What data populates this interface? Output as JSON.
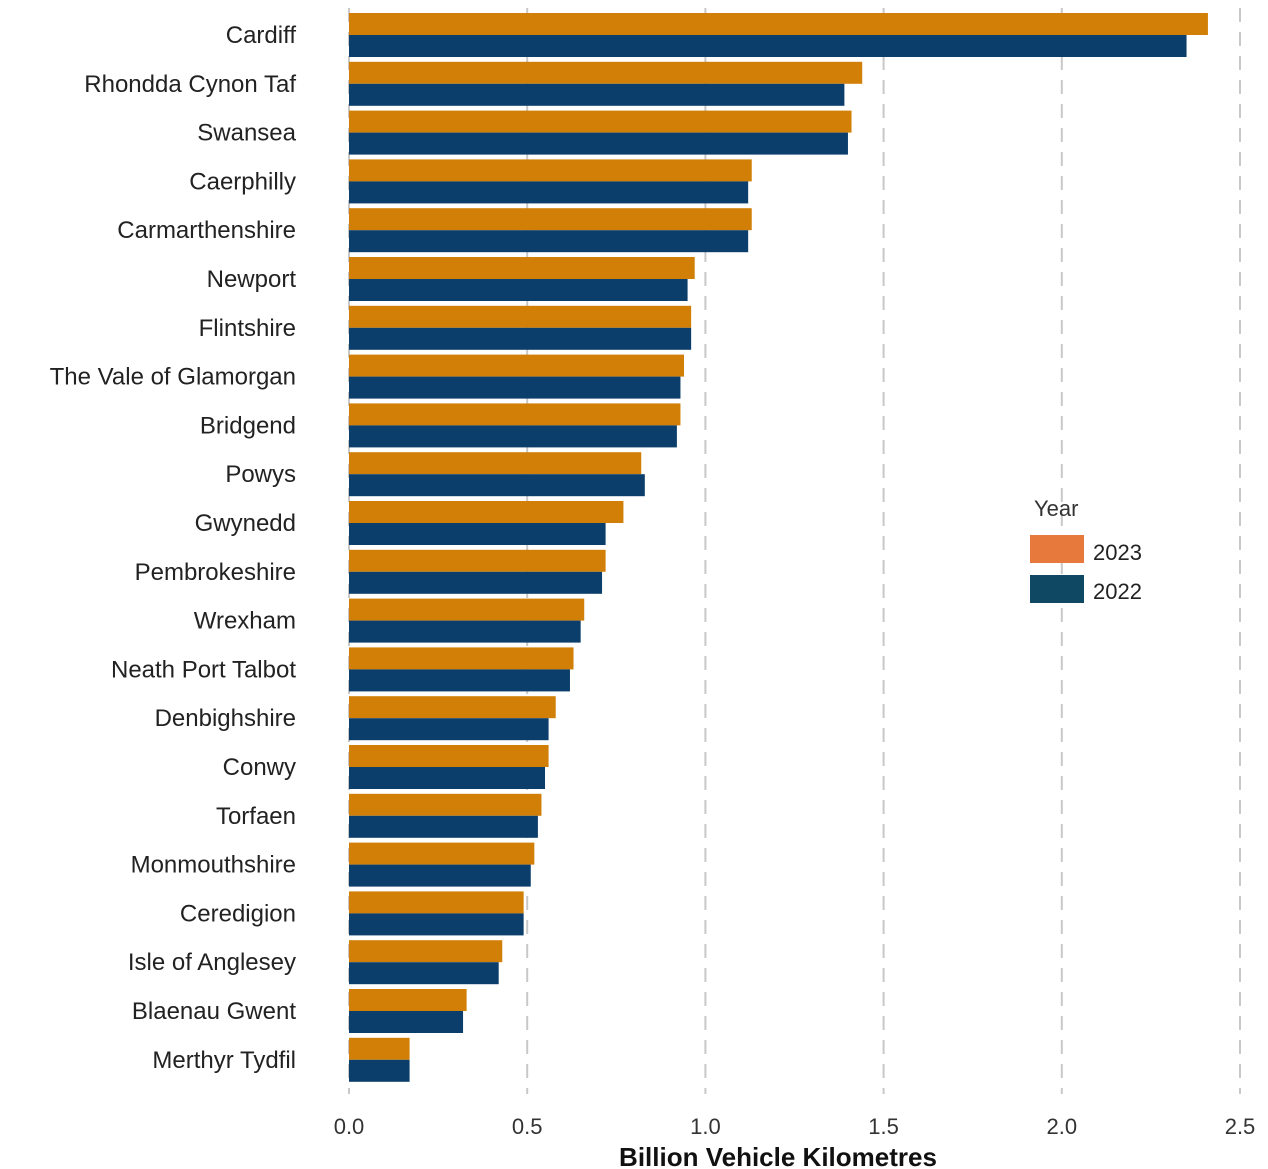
{
  "chart_data": {
    "type": "bar",
    "orientation": "horizontal",
    "xlabel": "Billion Vehicle Kilometres",
    "ylabel": "",
    "xlim": [
      0,
      2.5
    ],
    "x_ticks": [
      "0.0",
      "0.5",
      "1.0",
      "1.5",
      "2.0",
      "2.5"
    ],
    "grid": "vertical dashed",
    "legend": {
      "title": "Year",
      "placement": "right"
    },
    "categories": [
      "Cardiff",
      "Rhondda Cynon Taf",
      "Swansea",
      "Caerphilly",
      "Carmarthenshire",
      "Newport",
      "Flintshire",
      "The Vale of Glamorgan",
      "Bridgend",
      "Powys",
      "Gwynedd",
      "Pembrokeshire",
      "Wrexham",
      "Neath Port Talbot",
      "Denbighshire",
      "Conwy",
      "Torfaen",
      "Monmouthshire",
      "Ceredigion",
      "Isle of Anglesey",
      "Blaenau Gwent",
      "Merthyr Tydfil"
    ],
    "series": [
      {
        "name": "2023",
        "bar_color": "#D17F06",
        "legend_color": "#E8793C",
        "values": [
          2.41,
          1.44,
          1.41,
          1.13,
          1.13,
          0.97,
          0.96,
          0.94,
          0.93,
          0.82,
          0.77,
          0.72,
          0.66,
          0.63,
          0.58,
          0.56,
          0.54,
          0.52,
          0.49,
          0.43,
          0.33,
          0.17
        ]
      },
      {
        "name": "2022",
        "bar_color": "#0C3E6B",
        "legend_color": "#0E4863",
        "values": [
          2.35,
          1.39,
          1.4,
          1.12,
          1.12,
          0.95,
          0.96,
          0.93,
          0.92,
          0.83,
          0.72,
          0.71,
          0.65,
          0.62,
          0.56,
          0.55,
          0.53,
          0.51,
          0.49,
          0.42,
          0.32,
          0.17
        ]
      }
    ]
  }
}
